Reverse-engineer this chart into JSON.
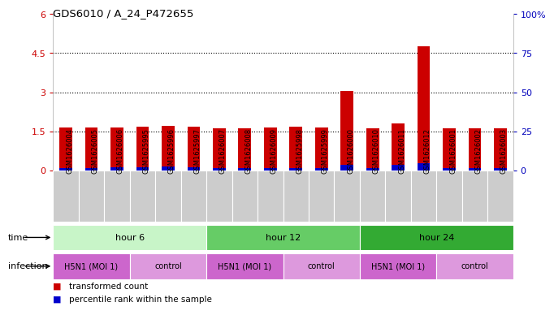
{
  "title": "GDS6010 / A_24_P472655",
  "samples": [
    "GSM1626004",
    "GSM1626005",
    "GSM1626006",
    "GSM1625995",
    "GSM1625996",
    "GSM1625997",
    "GSM1626007",
    "GSM1626008",
    "GSM1626009",
    "GSM1625998",
    "GSM1625999",
    "GSM1626000",
    "GSM1626010",
    "GSM1626011",
    "GSM1626012",
    "GSM1626001",
    "GSM1626002",
    "GSM1626003"
  ],
  "red_values": [
    1.65,
    1.65,
    1.65,
    1.67,
    1.7,
    1.68,
    1.62,
    1.63,
    1.65,
    1.68,
    1.65,
    3.05,
    1.62,
    1.8,
    4.75,
    1.63,
    1.63,
    1.63
  ],
  "blue_values": [
    0.1,
    0.1,
    0.12,
    0.12,
    0.14,
    0.13,
    0.09,
    0.09,
    0.1,
    0.1,
    0.09,
    0.22,
    0.09,
    0.2,
    0.28,
    0.1,
    0.1,
    0.1
  ],
  "ylim_left": [
    0,
    6
  ],
  "ylim_right": [
    0,
    100
  ],
  "yticks_left": [
    0,
    1.5,
    3.0,
    4.5,
    6.0
  ],
  "ytick_labels_left": [
    "0",
    "1.5",
    "3",
    "4.5",
    "6"
  ],
  "yticks_right": [
    0,
    25,
    50,
    75,
    100
  ],
  "ytick_labels_right": [
    "0",
    "25",
    "50",
    "75",
    "100%"
  ],
  "bar_width": 0.5,
  "red_color": "#cc0000",
  "blue_color": "#0000cc",
  "tick_color_left": "#cc0000",
  "tick_color_right": "#0000bb",
  "legend_red": "transformed count",
  "legend_blue": "percentile rank within the sample",
  "time_label": "time",
  "infection_label": "infection",
  "time_groups": [
    {
      "label": "hour 6",
      "start": 0,
      "end": 6,
      "color": "#c8f5c8"
    },
    {
      "label": "hour 12",
      "start": 6,
      "end": 12,
      "color": "#66cc66"
    },
    {
      "label": "hour 24",
      "start": 12,
      "end": 18,
      "color": "#33aa33"
    }
  ],
  "infection_groups": [
    {
      "label": "H5N1 (MOI 1)",
      "start": 0,
      "end": 3,
      "color": "#cc66cc"
    },
    {
      "label": "control",
      "start": 3,
      "end": 6,
      "color": "#dd99dd"
    },
    {
      "label": "H5N1 (MOI 1)",
      "start": 6,
      "end": 9,
      "color": "#cc66cc"
    },
    {
      "label": "control",
      "start": 9,
      "end": 12,
      "color": "#dd99dd"
    },
    {
      "label": "H5N1 (MOI 1)",
      "start": 12,
      "end": 15,
      "color": "#cc66cc"
    },
    {
      "label": "control",
      "start": 15,
      "end": 18,
      "color": "#dd99dd"
    }
  ],
  "sample_bg": "#cccccc"
}
